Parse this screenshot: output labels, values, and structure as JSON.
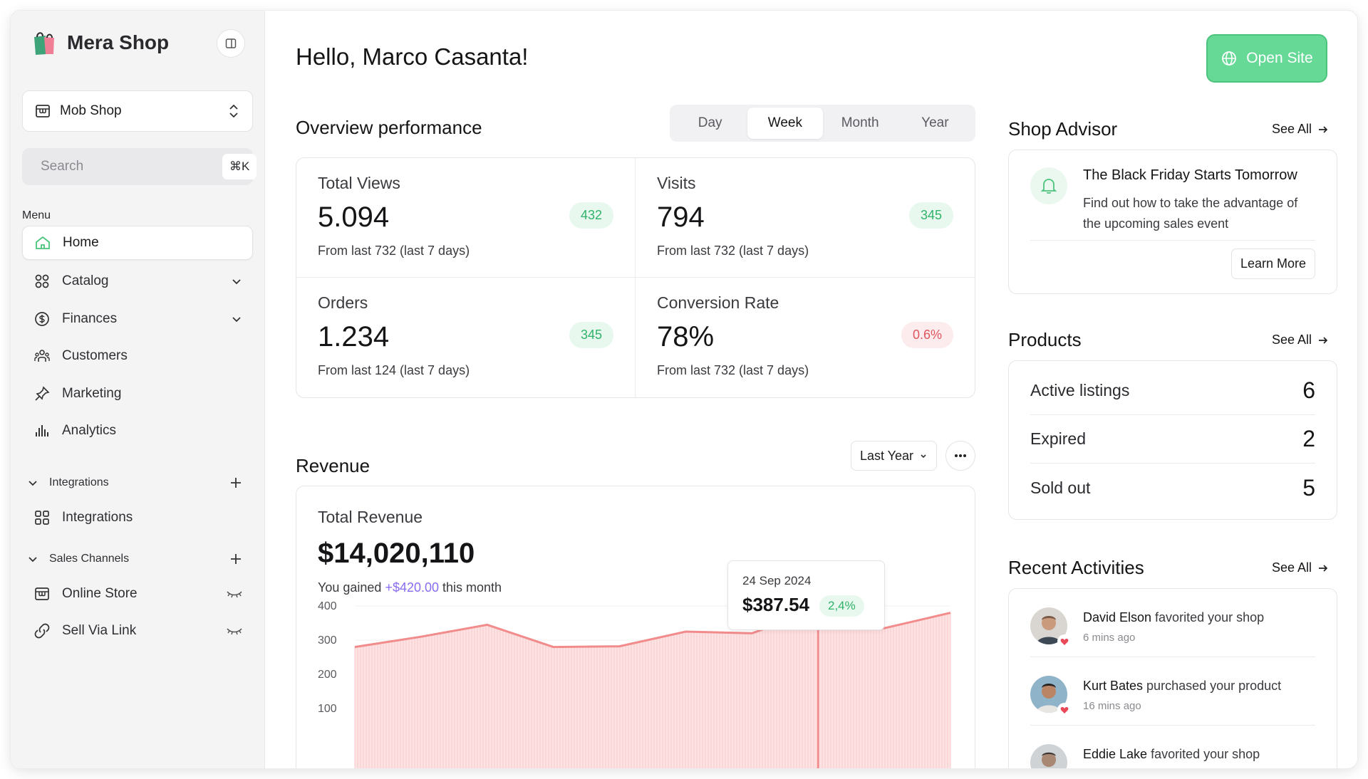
{
  "brand": {
    "name": "Mera Shop"
  },
  "store_selector": {
    "label": "Mob Shop"
  },
  "search": {
    "placeholder": "Search",
    "shortcut": "⌘K"
  },
  "sidebar": {
    "menu_label": "Menu",
    "items": [
      {
        "label": "Home",
        "icon": "home-icon",
        "active": true
      },
      {
        "label": "Catalog",
        "icon": "grid-icon",
        "has_chevron": true
      },
      {
        "label": "Finances",
        "icon": "dollar-icon",
        "has_chevron": true
      },
      {
        "label": "Customers",
        "icon": "users-icon"
      },
      {
        "label": "Marketing",
        "icon": "pin-icon"
      },
      {
        "label": "Analytics",
        "icon": "bar-chart-icon"
      }
    ],
    "integrations_group": {
      "label": "Integrations",
      "items": [
        {
          "label": "Integrations",
          "icon": "grid-icon"
        }
      ]
    },
    "sales_channels_group": {
      "label": "Sales Channels",
      "items": [
        {
          "label": "Online Store",
          "icon": "store-icon"
        },
        {
          "label": "Sell Via Link",
          "icon": "link-icon"
        }
      ]
    }
  },
  "header": {
    "greeting": "Hello, Marco Casanta!",
    "open_site_label": "Open Site"
  },
  "overview": {
    "title": "Overview performance",
    "periods": [
      "Day",
      "Week",
      "Month",
      "Year"
    ],
    "active_period": "Week",
    "stats": [
      {
        "title": "Total Views",
        "value": "5.094",
        "badge": "432",
        "badge_tone": "green",
        "footnote": "From last 732 (last 7 days)"
      },
      {
        "title": "Visits",
        "value": "794",
        "badge": "345",
        "badge_tone": "green",
        "footnote": "From last 732 (last 7 days)"
      },
      {
        "title": "Orders",
        "value": "1.234",
        "badge": "345",
        "badge_tone": "green",
        "footnote": "From last 124 (last 7 days)"
      },
      {
        "title": "Conversion Rate",
        "value": "78%",
        "badge": "0.6%",
        "badge_tone": "red",
        "footnote": "From last 732 (last 7 days)"
      }
    ]
  },
  "revenue": {
    "title": "Revenue",
    "range_label": "Last Year",
    "card_title": "Total Revenue",
    "total": "$14,020,110",
    "gain_prefix": "You gained ",
    "gain_value": "+$420.00",
    "gain_suffix": " this month",
    "tooltip": {
      "date": "24 Sep 2024",
      "amount": "$387.54",
      "change": "2,4%"
    }
  },
  "chart_data": {
    "type": "area",
    "y_ticks": [
      400,
      300,
      200,
      100
    ],
    "ylim": [
      100,
      400
    ],
    "values": [
      280,
      310,
      345,
      280,
      282,
      325,
      320,
      390,
      335,
      380
    ],
    "highlight_index": 7,
    "colors": {
      "line": "#f28b8b",
      "fill": "#fde3e3"
    }
  },
  "shop_advisor": {
    "title": "Shop Advisor",
    "see_all": "See All",
    "headline": "The Black Friday Starts Tomorrow",
    "description": "Find out how to take the advantage of the upcoming sales event",
    "cta": "Learn More"
  },
  "products": {
    "title": "Products",
    "see_all": "See All",
    "rows": [
      {
        "label": "Active listings",
        "count": "6"
      },
      {
        "label": "Expired",
        "count": "2"
      },
      {
        "label": "Sold out",
        "count": "5"
      }
    ]
  },
  "activities": {
    "title": "Recent Activities",
    "see_all": "See All",
    "items": [
      {
        "name": "David Elson",
        "action": " favorited your shop",
        "time": "6 mins ago"
      },
      {
        "name": "Kurt Bates",
        "action": " purchased your product",
        "time": "16 mins ago"
      },
      {
        "name": "Eddie Lake",
        "action": " favorited your shop",
        "time": ""
      }
    ]
  },
  "colors": {
    "accent_green": "#67d996",
    "badge_green": "#2fb36a",
    "badge_red": "#e0545e",
    "link_purple": "#8a6cf0"
  }
}
